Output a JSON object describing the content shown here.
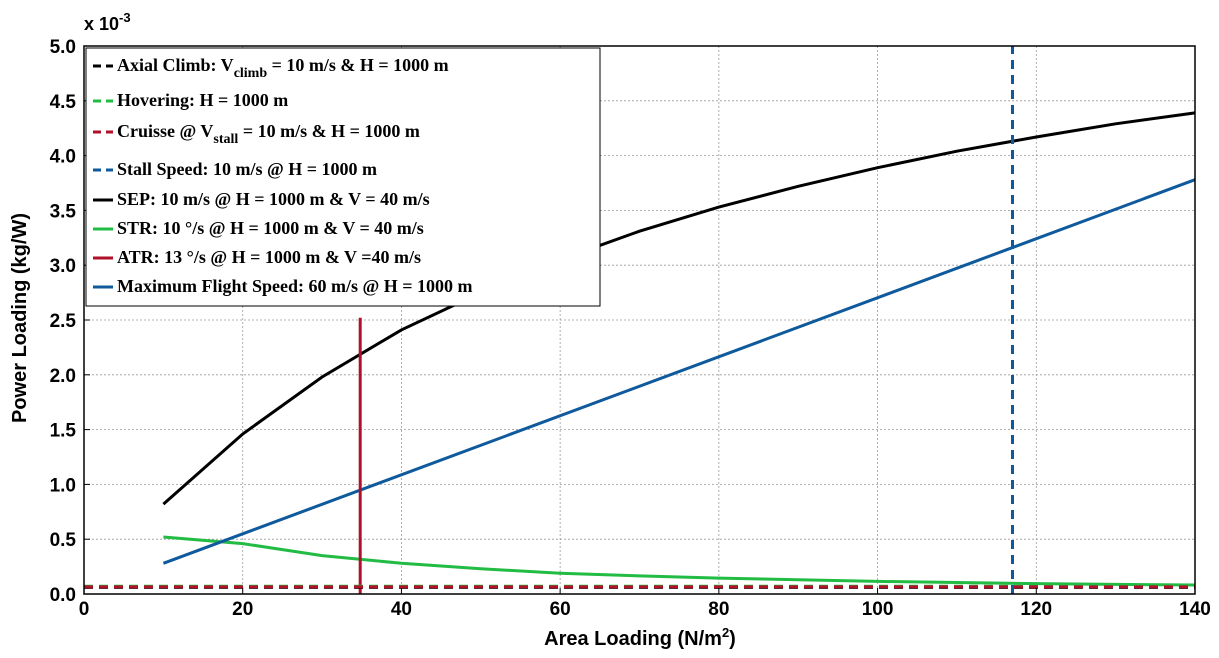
{
  "chart_data": {
    "type": "line",
    "title": "",
    "xlabel": "Area Loading (N/m",
    "xlabel_sup": "2",
    "xlabel_tail": ")",
    "ylabel": "Power Loading (kg/W)",
    "y_multiplier_base": "x 10",
    "y_multiplier_exp": "-3",
    "xlim": [
      0,
      140
    ],
    "ylim": [
      0,
      5.0
    ],
    "x_ticks": [
      0,
      20,
      40,
      60,
      80,
      100,
      120,
      140
    ],
    "y_ticks": [
      0,
      0.5,
      1.0,
      1.5,
      2.0,
      2.5,
      3.0,
      3.5,
      4.0,
      4.5,
      5.0
    ],
    "x_tick_labels": [
      "0",
      "20",
      "40",
      "60",
      "80",
      "100",
      "120",
      "140"
    ],
    "y_tick_labels": [
      "0.0",
      "0.5",
      "1.0",
      "1.5",
      "2.0",
      "2.5",
      "3.0",
      "3.5",
      "4.0",
      "4.5",
      "5.0"
    ],
    "grid": true,
    "legend_position": "top-left",
    "series": [
      {
        "name": "Axial Climb: V",
        "name_sub": "climb",
        "name_tail": " = 10 m/s & H = 1000 m",
        "color": "#000000",
        "dash": true,
        "kind": "horizontal",
        "x": [
          0,
          140
        ],
        "y": [
          0.06,
          0.06
        ]
      },
      {
        "name": " Hovering: H = 1000 m",
        "color": "#22bb44",
        "dash": true,
        "kind": "horizontal",
        "x": [
          0,
          140
        ],
        "y": [
          0.07,
          0.07
        ]
      },
      {
        "name": "Cruisse @ V",
        "name_sub": "stall",
        "name_tail": " = 10 m/s & H = 1000 m",
        "color": "#b0102a",
        "dash": true,
        "kind": "horizontal",
        "x": [
          0,
          140
        ],
        "y": [
          0.065,
          0.065
        ]
      },
      {
        "name": "Stall Speed: 10 m/s @ H = 1000 m",
        "color": "#0e5a9c",
        "dash": true,
        "kind": "vertical",
        "x": [
          117,
          117
        ],
        "y": [
          0,
          5.0
        ]
      },
      {
        "name": "SEP: 10 m/s @ H = 1000 m & V = 40 m/s",
        "color": "#000000",
        "dash": false,
        "kind": "curve",
        "x": [
          10,
          20,
          30,
          40,
          50,
          60,
          70,
          80,
          90,
          100,
          110,
          120,
          130,
          140
        ],
        "y": [
          0.82,
          1.46,
          1.98,
          2.41,
          2.75,
          3.05,
          3.31,
          3.53,
          3.72,
          3.89,
          4.04,
          4.17,
          4.29,
          4.39
        ]
      },
      {
        "name": "STR: 10 °/s @ H = 1000 m & V = 40 m/s",
        "color": "#22bb44",
        "dash": false,
        "kind": "curve",
        "x": [
          10,
          20,
          30,
          40,
          50,
          60,
          70,
          80,
          90,
          100,
          110,
          120,
          130,
          140
        ],
        "y": [
          0.52,
          0.46,
          0.35,
          0.28,
          0.23,
          0.19,
          0.165,
          0.145,
          0.13,
          0.115,
          0.105,
          0.095,
          0.088,
          0.082
        ]
      },
      {
        "name": "ATR: 13 °/s @ H = 1000 m & V =40 m/s",
        "color": "#b0102a",
        "dash": false,
        "kind": "vertical",
        "x": [
          34.8,
          34.8
        ],
        "y": [
          0,
          2.52
        ]
      },
      {
        "name": "Maximum Flight Speed: 60 m/s @ H = 1000 m",
        "color": "#0e5a9c",
        "dash": false,
        "kind": "curve",
        "x": [
          10,
          140
        ],
        "y": [
          0.28,
          3.78
        ]
      }
    ]
  }
}
